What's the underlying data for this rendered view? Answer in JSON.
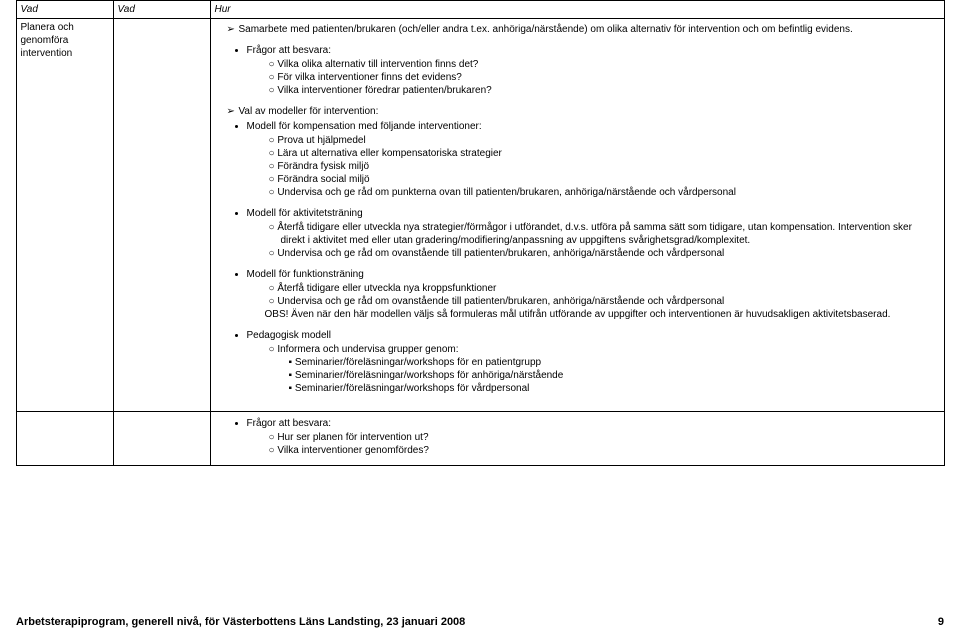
{
  "headers": {
    "c1": "Vad",
    "c2": "Vad",
    "c3": "Hur"
  },
  "rowLabel": "Planera och genomföra intervention",
  "main": {
    "arrow1": "Samarbete med patienten/brukaren (och/eller andra t.ex. anhöriga/närstående) om olika alternativ för intervention och om befintlig evidens.",
    "b1_title": "Frågor att besvara:",
    "b1_i1": "Vilka olika alternativ till intervention finns det?",
    "b1_i2": "För vilka interventioner finns det evidens?",
    "b1_i3": "Vilka interventioner föredrar patienten/brukaren?",
    "arrow2": "Val av modeller för intervention:",
    "b2_title": "Modell för kompensation med följande interventioner:",
    "b2_i1": "Prova ut hjälpmedel",
    "b2_i2": "Lära ut alternativa eller kompensatoriska strategier",
    "b2_i3": "Förändra fysisk miljö",
    "b2_i4": "Förändra social miljö",
    "b2_i5": "Undervisa och ge råd om punkterna ovan till patienten/brukaren, anhöriga/närstående och vårdpersonal",
    "b3_title": "Modell för aktivitetsträning",
    "b3_i1": "Återfå tidigare eller utveckla nya strategier/förmågor i utförandet, d.v.s. utföra på samma sätt som tidigare, utan kompensation. Intervention sker direkt i aktivitet med eller utan gradering/modifiering/anpassning av uppgiftens svårighetsgrad/komplexitet.",
    "b3_i2": "Undervisa och ge råd om ovanstående till patienten/brukaren, anhöriga/närstående och vårdpersonal",
    "b4_title": "Modell för funktionsträning",
    "b4_i1": "Återfå tidigare eller utveckla nya kroppsfunktioner",
    "b4_i2": "Undervisa och ge råd om ovanstående till patienten/brukaren, anhöriga/närstående och vårdpersonal",
    "b4_obs": "OBS! Även när den här modellen väljs så formuleras mål utifrån utförande av uppgifter och interventionen är huvudsakligen aktivitetsbaserad.",
    "b5_title": "Pedagogisk modell",
    "b5_i1": "Informera och undervisa grupper genom:",
    "b5_s1": "Seminarier/föreläsningar/workshops för en patientgrupp",
    "b5_s2": "Seminarier/föreläsningar/workshops för anhöriga/närstående",
    "b5_s3": "Seminarier/föreläsningar/workshops för vårdpersonal",
    "b6_title": "Frågor att besvara:",
    "b6_i1": "Hur ser planen för intervention ut?",
    "b6_i2": "Vilka interventioner genomfördes?"
  },
  "footer": {
    "left": "Arbetsterapiprogram, generell nivå, för Västerbottens Läns Landsting, 23 januari 2008",
    "page": "9"
  }
}
